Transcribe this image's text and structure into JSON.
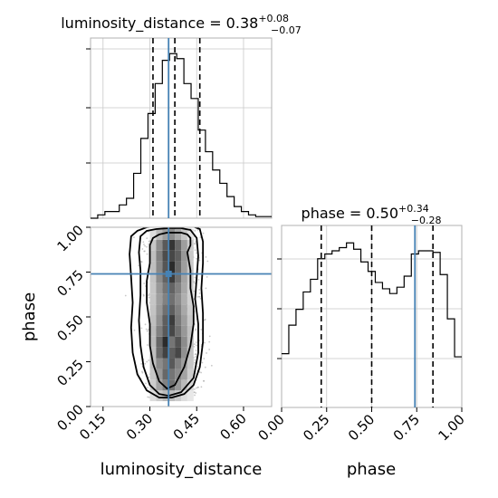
{
  "chart_data": [
    {
      "type": "histogram",
      "panel": "luminosity_distance marginal",
      "title": {
        "text": "luminosity_distance = 0.38",
        "upper": "+0.08",
        "lower": "−0.07"
      },
      "parameter": "luminosity_distance",
      "xlim": [
        0.11,
        0.69
      ],
      "bin_edges": [
        0.11,
        0.133,
        0.156,
        0.179,
        0.202,
        0.225,
        0.248,
        0.271,
        0.294,
        0.317,
        0.34,
        0.363,
        0.386,
        0.409,
        0.432,
        0.455,
        0.478,
        0.501,
        0.524,
        0.547,
        0.57,
        0.593,
        0.616,
        0.639,
        0.662,
        0.69
      ],
      "counts": [
        0,
        2,
        4,
        4,
        8,
        12,
        27,
        48,
        63,
        81,
        95,
        99,
        96,
        81,
        72,
        53,
        40,
        29,
        21,
        13,
        7,
        4,
        2,
        1,
        1
      ],
      "quantiles": [
        0.31,
        0.38,
        0.46
      ],
      "truth": 0.36,
      "grid": true
    },
    {
      "type": "histogram",
      "panel": "phase marginal",
      "title": {
        "text": "phase = 0.50",
        "upper": "+0.34",
        "lower": "−0.28"
      },
      "parameter": "phase",
      "xlim": [
        0.0,
        1.0
      ],
      "bin_edges": [
        0.0,
        0.04,
        0.08,
        0.12,
        0.16,
        0.2,
        0.24,
        0.28,
        0.32,
        0.36,
        0.4,
        0.44,
        0.48,
        0.52,
        0.56,
        0.6,
        0.64,
        0.68,
        0.72,
        0.76,
        0.8,
        0.84,
        0.88,
        0.92,
        0.96,
        1.0
      ],
      "counts": [
        34,
        52,
        62,
        73,
        81,
        94,
        97,
        99,
        101,
        104,
        100,
        92,
        86,
        79,
        75,
        72,
        76,
        83,
        97,
        99,
        99,
        98,
        84,
        56,
        32
      ],
      "quantiles": [
        0.22,
        0.5,
        0.84
      ],
      "truth": 0.74,
      "grid": true
    },
    {
      "type": "heatmap",
      "panel": "luminosity_distance vs phase",
      "xlabel": "luminosity_distance",
      "ylabel": "phase",
      "xlim": [
        0.11,
        0.69
      ],
      "ylim": [
        0.0,
        1.0
      ],
      "x_ticks": [
        "0.15",
        "0.30",
        "0.45",
        "0.60"
      ],
      "x_tick_values": [
        0.15,
        0.3,
        0.45,
        0.6
      ],
      "y_ticks": [
        "0.00",
        "0.25",
        "0.50",
        "0.75",
        "1.00"
      ],
      "y_tick_values": [
        0.0,
        0.25,
        0.5,
        0.75,
        1.0
      ],
      "x_centers": [
        0.31,
        0.33,
        0.35,
        0.37,
        0.39,
        0.41,
        0.43
      ],
      "y_centers": [
        0.06,
        0.12,
        0.18,
        0.24,
        0.3,
        0.36,
        0.42,
        0.48,
        0.54,
        0.6,
        0.66,
        0.72,
        0.78,
        0.84,
        0.9,
        0.96
      ],
      "density": [
        [
          0.15,
          0.22,
          0.3,
          0.28,
          0.22,
          0.15,
          0.1
        ],
        [
          0.22,
          0.4,
          0.55,
          0.62,
          0.45,
          0.3,
          0.18
        ],
        [
          0.25,
          0.45,
          0.66,
          0.6,
          0.5,
          0.4,
          0.22
        ],
        [
          0.28,
          0.5,
          0.6,
          0.72,
          0.55,
          0.42,
          0.25
        ],
        [
          0.28,
          0.65,
          0.82,
          0.7,
          0.8,
          0.48,
          0.26
        ],
        [
          0.3,
          0.66,
          0.92,
          0.6,
          0.75,
          0.5,
          0.28
        ],
        [
          0.3,
          0.55,
          0.72,
          0.8,
          0.62,
          0.45,
          0.28
        ],
        [
          0.28,
          0.48,
          0.7,
          0.85,
          0.58,
          0.42,
          0.25
        ],
        [
          0.26,
          0.45,
          0.62,
          0.7,
          0.55,
          0.38,
          0.22
        ],
        [
          0.25,
          0.42,
          0.55,
          0.62,
          0.5,
          0.35,
          0.2
        ],
        [
          0.25,
          0.45,
          0.6,
          0.68,
          0.55,
          0.38,
          0.2
        ],
        [
          0.26,
          0.5,
          0.68,
          0.85,
          0.62,
          0.4,
          0.22
        ],
        [
          0.28,
          0.52,
          0.74,
          0.92,
          0.66,
          0.42,
          0.24
        ],
        [
          0.28,
          0.55,
          0.78,
          0.8,
          0.7,
          0.45,
          0.24
        ],
        [
          0.25,
          0.5,
          0.72,
          0.88,
          0.66,
          0.42,
          0.22
        ],
        [
          0.15,
          0.3,
          0.42,
          0.5,
          0.38,
          0.25,
          0.12
        ]
      ],
      "contours": [
        {
          "x": [
            0.3,
            0.3,
            0.29,
            0.29,
            0.3,
            0.3,
            0.31,
            0.33,
            0.355,
            0.38,
            0.41,
            0.43,
            0.44,
            0.44,
            0.43,
            0.43,
            0.42,
            0.43,
            0.43,
            0.42,
            0.4,
            0.38,
            0.355,
            0.33,
            0.31
          ],
          "y": [
            0.9,
            0.8,
            0.7,
            0.58,
            0.46,
            0.34,
            0.24,
            0.14,
            0.1,
            0.12,
            0.22,
            0.34,
            0.46,
            0.56,
            0.66,
            0.76,
            0.86,
            0.9,
            0.94,
            0.96,
            0.97,
            0.97,
            0.97,
            0.96,
            0.94
          ]
        },
        {
          "x": [
            0.27,
            0.265,
            0.27,
            0.27,
            0.265,
            0.27,
            0.28,
            0.3,
            0.33,
            0.36,
            0.4,
            0.44,
            0.455,
            0.455,
            0.445,
            0.45,
            0.455,
            0.45,
            0.43,
            0.4,
            0.36,
            0.32,
            0.29
          ],
          "y": [
            0.95,
            0.86,
            0.76,
            0.62,
            0.48,
            0.34,
            0.22,
            0.12,
            0.07,
            0.06,
            0.08,
            0.16,
            0.3,
            0.46,
            0.6,
            0.72,
            0.84,
            0.94,
            0.985,
            0.995,
            0.995,
            0.99,
            0.98
          ]
        },
        {
          "x": [
            0.24,
            0.235,
            0.24,
            0.245,
            0.24,
            0.245,
            0.26,
            0.29,
            0.33,
            0.37,
            0.41,
            0.44,
            0.46,
            0.47,
            0.47,
            0.465,
            0.47,
            0.47,
            0.46,
            0.43,
            0.39,
            0.34,
            0.29,
            0.26
          ],
          "y": [
            0.95,
            0.85,
            0.72,
            0.58,
            0.44,
            0.3,
            0.18,
            0.09,
            0.05,
            0.05,
            0.07,
            0.12,
            0.22,
            0.36,
            0.52,
            0.66,
            0.8,
            0.92,
            0.99,
            1.01,
            1.01,
            1.01,
            1.0,
            0.98
          ]
        }
      ],
      "truth": {
        "x": 0.36,
        "y": 0.74
      },
      "grid": false
    }
  ]
}
